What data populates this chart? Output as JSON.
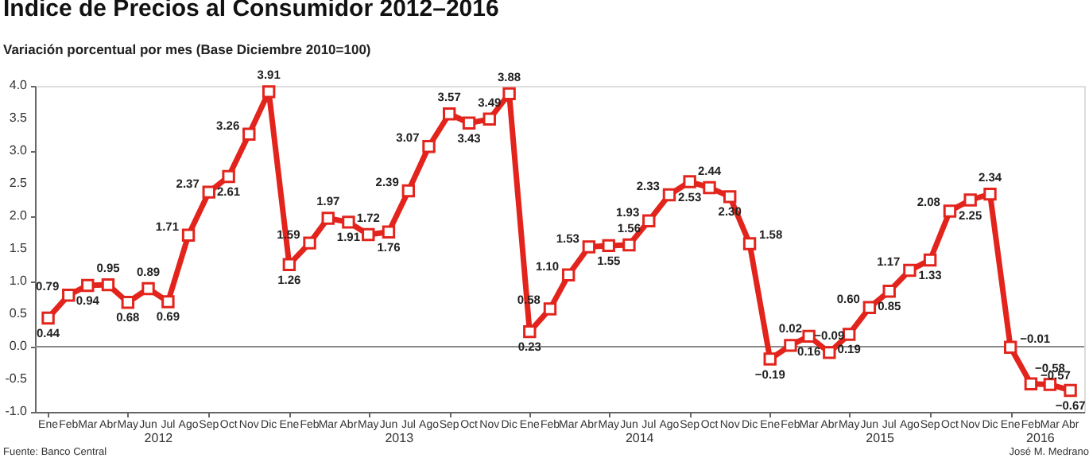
{
  "chart_data": {
    "type": "line",
    "title": "Indice de Precios al Consumidor 2012–2016",
    "subtitle": "Variación porcentual por mes (Base Diciembre 2010=100)",
    "x": [
      "2012-01",
      "2012-02",
      "2012-03",
      "2012-04",
      "2012-05",
      "2012-06",
      "2012-07",
      "2012-08",
      "2012-09",
      "2012-10",
      "2012-11",
      "2012-12",
      "2013-01",
      "2013-02",
      "2013-03",
      "2013-04",
      "2013-05",
      "2013-06",
      "2013-07",
      "2013-08",
      "2013-09",
      "2013-10",
      "2013-11",
      "2013-12",
      "2014-01",
      "2014-02",
      "2014-03",
      "2014-04",
      "2014-05",
      "2014-06",
      "2014-07",
      "2014-08",
      "2014-09",
      "2014-10",
      "2014-11",
      "2014-12",
      "2015-01",
      "2015-02",
      "2015-03",
      "2015-04",
      "2015-05",
      "2015-06",
      "2015-07",
      "2015-08",
      "2015-09",
      "2015-10",
      "2015-11",
      "2015-12",
      "2016-01",
      "2016-02",
      "2016-03",
      "2016-04"
    ],
    "series": [
      {
        "color": "#e3241c",
        "values": [
          0.44,
          0.79,
          0.94,
          0.95,
          0.68,
          0.89,
          0.69,
          1.71,
          2.37,
          2.61,
          3.26,
          3.91,
          1.26,
          1.59,
          1.97,
          1.91,
          1.72,
          1.76,
          2.39,
          3.07,
          3.57,
          3.43,
          3.49,
          3.88,
          0.23,
          0.58,
          1.1,
          1.53,
          1.55,
          1.56,
          1.93,
          2.33,
          2.53,
          2.44,
          2.3,
          1.58,
          -0.19,
          0.02,
          0.16,
          -0.09,
          0.19,
          0.6,
          0.85,
          1.17,
          1.33,
          2.08,
          2.25,
          2.34,
          -0.01,
          -0.57,
          -0.58,
          -0.67
        ],
        "value_labels": [
          "0.44",
          "0.79",
          "0.94",
          "0.95",
          "0.68",
          "0.89",
          "0.69",
          "1.71",
          "2.37",
          "2.61",
          "3.26",
          "3.91",
          "1.26",
          "1.59",
          "1.97",
          "1.91",
          "1.72",
          "1.76",
          "2.39",
          "3.07",
          "3.57",
          "3.43",
          "3.49",
          "3.88",
          "0.23",
          "0.58",
          "1.10",
          "1.53",
          "1.55",
          "1.56",
          "1.93",
          "2.33",
          "2.53",
          "2.44",
          "2.30",
          "1.58",
          "−0.19",
          "0.02",
          "0.16",
          "−0.09",
          "0.19",
          "0.60",
          "0.85",
          "1.17",
          "1.33",
          "2.08",
          "2.25",
          "2.34",
          "−0.01",
          "−0.57",
          "−0.58",
          "−0.67"
        ]
      }
    ],
    "xlim": [
      "2011-12-12",
      "2016-04-22"
    ],
    "xticks": [
      {
        "value": "2012-01",
        "label": "Ene"
      },
      {
        "value": "2012-02",
        "label": "Feb"
      },
      {
        "value": "2012-03",
        "label": "Mar"
      },
      {
        "value": "2012-04",
        "label": "Abr"
      },
      {
        "value": "2012-05",
        "label": "May"
      },
      {
        "value": "2012-06",
        "label": "Jun"
      },
      {
        "value": "2012-07",
        "label": "Jul"
      },
      {
        "value": "2012-08",
        "label": "Ago"
      },
      {
        "value": "2012-09",
        "label": "Sep"
      },
      {
        "value": "2012-10",
        "label": "Oct"
      },
      {
        "value": "2012-11",
        "label": "Nov"
      },
      {
        "value": "2012-12",
        "label": "Dic"
      },
      {
        "value": "2013-01",
        "label": "Ene"
      },
      {
        "value": "2013-02",
        "label": "Feb"
      },
      {
        "value": "2013-03",
        "label": "Mar"
      },
      {
        "value": "2013-04",
        "label": "Abr"
      },
      {
        "value": "2013-05",
        "label": "May"
      },
      {
        "value": "2013-06",
        "label": "Jun"
      },
      {
        "value": "2013-07",
        "label": "Jul"
      },
      {
        "value": "2013-08",
        "label": "Ago"
      },
      {
        "value": "2013-09",
        "label": "Sep"
      },
      {
        "value": "2013-10",
        "label": "Oct"
      },
      {
        "value": "2013-11",
        "label": "Nov"
      },
      {
        "value": "2013-12",
        "label": "Dic"
      },
      {
        "value": "2014-01",
        "label": "Ene"
      },
      {
        "value": "2014-02",
        "label": "Feb"
      },
      {
        "value": "2014-03",
        "label": "Mar"
      },
      {
        "value": "2014-04",
        "label": "Abr"
      },
      {
        "value": "2014-05",
        "label": "May"
      },
      {
        "value": "2014-06",
        "label": "Jun"
      },
      {
        "value": "2014-07",
        "label": "Jul"
      },
      {
        "value": "2014-08",
        "label": "Ago"
      },
      {
        "value": "2014-09",
        "label": "Sep"
      },
      {
        "value": "2014-10",
        "label": "Oct"
      },
      {
        "value": "2014-11",
        "label": "Nov"
      },
      {
        "value": "2014-12",
        "label": "Dic"
      },
      {
        "value": "2015-01",
        "label": "Ene"
      },
      {
        "value": "2015-02",
        "label": "Feb"
      },
      {
        "value": "2015-03",
        "label": "Mar"
      },
      {
        "value": "2015-04",
        "label": "Abr"
      },
      {
        "value": "2015-05",
        "label": "May"
      },
      {
        "value": "2015-06",
        "label": "Jun"
      },
      {
        "value": "2015-07",
        "label": "Jul"
      },
      {
        "value": "2015-08",
        "label": "Ago"
      },
      {
        "value": "2015-09",
        "label": "Sep"
      },
      {
        "value": "2015-10",
        "label": "Oct"
      },
      {
        "value": "2015-11",
        "label": "Nov"
      },
      {
        "value": "2015-12",
        "label": "Dic"
      },
      {
        "value": "2016-01",
        "label": "Ene"
      },
      {
        "value": "2016-02",
        "label": "Feb"
      },
      {
        "value": "2016-03",
        "label": "Mar"
      },
      {
        "value": "2016-04",
        "label": "Abr"
      }
    ],
    "ylim": [
      -1,
      4
    ],
    "yticks": [
      {
        "value": -1,
        "label": "-1.0"
      },
      {
        "value": -0.5,
        "label": "-0.5"
      },
      {
        "value": 0,
        "label": "0.0"
      },
      {
        "value": 0.5,
        "label": "0.5"
      },
      {
        "value": 1,
        "label": "1.0"
      },
      {
        "value": 1.5,
        "label": "1.5"
      },
      {
        "value": 2,
        "label": "2.0"
      },
      {
        "value": 2.5,
        "label": "2.5"
      },
      {
        "value": 3,
        "label": "3.0"
      },
      {
        "value": 3.5,
        "label": "3.5"
      },
      {
        "value": 4,
        "label": "4.0"
      }
    ],
    "ref_lines": [
      {
        "axis": "y",
        "value": 0,
        "color": "#888888"
      }
    ],
    "marker": "square",
    "line_style": "solid",
    "grid": false,
    "annotations": [
      "2012",
      "2013",
      "2014",
      "2015",
      "2016",
      "Fuente: Banco Central",
      "José M. Medrano"
    ]
  }
}
